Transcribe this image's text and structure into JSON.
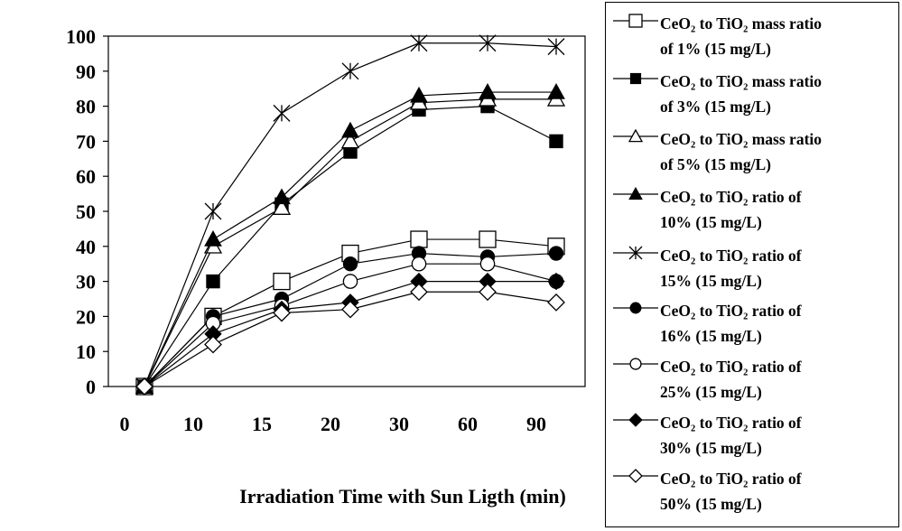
{
  "chart_data": {
    "type": "line",
    "xlabel": "Irradiation Time with Sun Ligth (min)",
    "ylabel": "",
    "x": [
      "0",
      "10",
      "15",
      "20",
      "30",
      "60",
      "90"
    ],
    "ylim": [
      0,
      100
    ],
    "yticks": [
      "0",
      "10",
      "20",
      "30",
      "40",
      "50",
      "60",
      "70",
      "80",
      "90",
      "100"
    ],
    "grid": false,
    "legend_position": "right",
    "series": [
      {
        "name": "CeO₂ to TiO₂ mass ratio\nof 1% (15 mg/L)",
        "marker": "square-open",
        "values": [
          0,
          20,
          30,
          38,
          42,
          42,
          40
        ]
      },
      {
        "name": "CeO₂ to TiO₂ mass ratio\nof 3% (15 mg/L)",
        "marker": "square-filled",
        "values": [
          0,
          30,
          52,
          67,
          79,
          80,
          70
        ]
      },
      {
        "name": "CeO₂ to TiO₂ mass ratio\nof 5% (15 mg/L)",
        "marker": "triangle-open",
        "values": [
          0,
          40,
          51,
          70,
          81,
          82,
          82
        ]
      },
      {
        "name": "CeO₂ to TiO₂ ratio of\n10% (15 mg/L)",
        "marker": "triangle-filled",
        "values": [
          0,
          42,
          54,
          73,
          83,
          84,
          84
        ]
      },
      {
        "name": "CeO₂ to TiO₂ ratio of\n15% (15 mg/L)",
        "marker": "star",
        "values": [
          0,
          50,
          78,
          90,
          98,
          98,
          97
        ]
      },
      {
        "name": "CeO₂ to TiO₂ ratio of\n16% (15 mg/L)",
        "marker": "circle-filled",
        "values": [
          0,
          20,
          25,
          35,
          38,
          37,
          38
        ]
      },
      {
        "name": "CeO₂ to TiO₂ ratio of\n25% (15 mg/L)",
        "marker": "circle-open",
        "values": [
          0,
          18,
          23,
          30,
          35,
          35,
          30
        ]
      },
      {
        "name": "CeO₂ to TiO₂ ratio of\n30% (15 mg/L)",
        "marker": "diamond-filled",
        "values": [
          0,
          15,
          22,
          24,
          30,
          30,
          30
        ]
      },
      {
        "name": "CeO₂ to TiO₂ ratio of\n50% (15 mg/L)",
        "marker": "diamond-open",
        "values": [
          0,
          12,
          21,
          22,
          27,
          27,
          24
        ]
      }
    ]
  }
}
